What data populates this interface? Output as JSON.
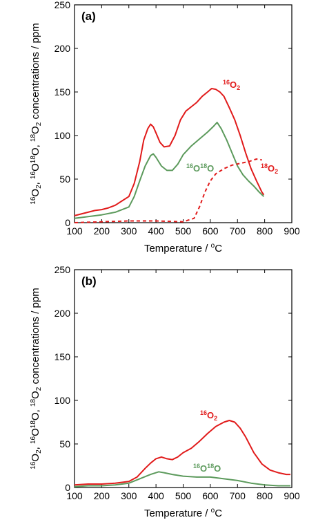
{
  "colors": {
    "o2_16": "#e11b1b",
    "o16o18": "#5c9a5c",
    "o2_18": "#e11b1b"
  },
  "chart_data": [
    {
      "type": "line",
      "panel_label": "(a)",
      "xlabel": "Temperature / ",
      "xlabel_unit": "oC",
      "ylabel": "16O2, 16O18O, 18O2 concentrations / ppm",
      "xlim": [
        100,
        900
      ],
      "ylim": [
        0,
        250
      ],
      "xticks": [
        100,
        200,
        300,
        400,
        500,
        600,
        700,
        800,
        900
      ],
      "yticks": [
        0,
        50,
        100,
        150,
        200,
        250
      ],
      "series": [
        {
          "key": "o2_16",
          "label_base": "16",
          "label_main": "O",
          "label_tail": "2",
          "dashed": false,
          "x": [
            100,
            125,
            150,
            175,
            200,
            225,
            250,
            275,
            300,
            320,
            340,
            355,
            370,
            380,
            390,
            400,
            415,
            430,
            450,
            470,
            490,
            510,
            530,
            550,
            570,
            590,
            605,
            620,
            635,
            650,
            670,
            690,
            710,
            730,
            750,
            770,
            790,
            797
          ],
          "y": [
            8,
            10,
            12,
            14,
            15,
            17,
            20,
            25,
            30,
            45,
            70,
            95,
            108,
            113,
            110,
            103,
            92,
            87,
            88,
            100,
            118,
            128,
            133,
            138,
            145,
            150,
            154,
            153,
            150,
            145,
            132,
            118,
            100,
            80,
            62,
            48,
            35,
            32
          ]
        },
        {
          "key": "o16o18",
          "label_base": "16",
          "label_main": "O",
          "label_mid": "18",
          "label_tail": "O",
          "dashed": false,
          "x": [
            100,
            150,
            200,
            250,
            300,
            320,
            340,
            360,
            380,
            390,
            400,
            420,
            440,
            460,
            480,
            500,
            530,
            560,
            590,
            610,
            625,
            640,
            660,
            680,
            700,
            720,
            740,
            760,
            780,
            797
          ],
          "y": [
            5,
            7,
            9,
            12,
            18,
            30,
            48,
            65,
            77,
            79,
            75,
            65,
            60,
            60,
            67,
            78,
            88,
            96,
            104,
            110,
            115,
            108,
            95,
            80,
            65,
            55,
            48,
            42,
            35,
            30
          ]
        },
        {
          "key": "o2_18",
          "label_base": "18",
          "label_main": "O",
          "label_tail": "2",
          "dashed": true,
          "x": [
            100,
            200,
            300,
            400,
            500,
            540,
            560,
            580,
            600,
            620,
            650,
            680,
            710,
            740,
            770,
            790
          ],
          "y": [
            0,
            1,
            2,
            2,
            1,
            5,
            18,
            35,
            48,
            56,
            62,
            66,
            68,
            70,
            73,
            72
          ]
        }
      ]
    },
    {
      "type": "line",
      "panel_label": "(b)",
      "xlabel": "Temperature / ",
      "xlabel_unit": "oC",
      "ylabel": "16O2, 16O18O, 18O2 concentrations / ppm",
      "xlim": [
        100,
        900
      ],
      "ylim": [
        0,
        250
      ],
      "xticks": [
        100,
        200,
        300,
        400,
        500,
        600,
        700,
        800,
        900
      ],
      "yticks": [
        0,
        50,
        100,
        150,
        200,
        250
      ],
      "series": [
        {
          "key": "o2_16",
          "label_base": "16",
          "label_main": "O",
          "label_tail": "2",
          "dashed": false,
          "x": [
            100,
            150,
            200,
            250,
            300,
            330,
            360,
            380,
            400,
            420,
            440,
            460,
            480,
            500,
            530,
            560,
            590,
            620,
            650,
            670,
            690,
            710,
            730,
            760,
            790,
            820,
            850,
            880,
            895
          ],
          "y": [
            3,
            4,
            4,
            5,
            7,
            12,
            22,
            28,
            33,
            35,
            33,
            32,
            35,
            40,
            45,
            53,
            62,
            70,
            75,
            77,
            75,
            68,
            58,
            40,
            27,
            20,
            17,
            15,
            15
          ]
        },
        {
          "key": "o16o18",
          "label_base": "16",
          "label_main": "O",
          "label_mid": "18",
          "label_tail": "O",
          "dashed": false,
          "x": [
            100,
            150,
            200,
            250,
            300,
            340,
            380,
            410,
            430,
            460,
            500,
            550,
            600,
            650,
            700,
            750,
            800,
            850,
            895
          ],
          "y": [
            1,
            2,
            2,
            3,
            5,
            10,
            15,
            18,
            17,
            15,
            13,
            12,
            12,
            10,
            8,
            5,
            3,
            2,
            2
          ]
        }
      ]
    }
  ]
}
